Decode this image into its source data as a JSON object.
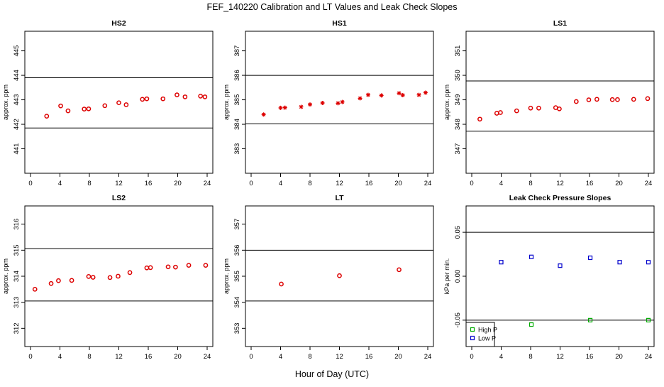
{
  "figure": {
    "title": "FEF_140220  Calibration and LT Values and Leak Check Slopes",
    "xlabel": "Hour of Day (UTC)"
  },
  "colors": {
    "sample": "#dd0000",
    "high_p": "#00aa00",
    "low_p": "#0000cc",
    "axis": "#000000"
  },
  "chart_data": [
    {
      "type": "scatter",
      "title": "HS2",
      "ylabel": "approx. ppm",
      "xlim": [
        0,
        24
      ],
      "ylim": [
        440,
        445.8
      ],
      "xticks": [
        0,
        4,
        8,
        12,
        16,
        20,
        24
      ],
      "yticks": [
        441,
        442,
        443,
        444,
        445
      ],
      "hlines": [
        441.85,
        443.9
      ],
      "marker": "circle",
      "series": [
        {
          "color": "#dd0000",
          "x": [
            2.2,
            4.1,
            5.1,
            7.3,
            7.9,
            10.1,
            12.0,
            13.0,
            15.2,
            15.8,
            18.0,
            19.9,
            21.0,
            23.1,
            23.7
          ],
          "y": [
            442.33,
            442.75,
            442.55,
            442.62,
            442.63,
            442.76,
            442.88,
            442.8,
            443.02,
            443.04,
            443.04,
            443.2,
            443.12,
            443.15,
            443.12
          ]
        }
      ]
    },
    {
      "type": "scatter",
      "title": "HS1",
      "ylabel": "approx. ppm",
      "xlim": [
        0,
        24
      ],
      "ylim": [
        382,
        387.8
      ],
      "xticks": [
        0,
        4,
        8,
        12,
        16,
        20,
        24
      ],
      "yticks": [
        383,
        384,
        385,
        386,
        387
      ],
      "hlines": [
        384.02,
        386.0
      ],
      "marker": "star",
      "series": [
        {
          "color": "#dd0000",
          "x": [
            1.7,
            4.0,
            4.6,
            6.8,
            8.0,
            9.7,
            11.8,
            12.4,
            14.8,
            15.9,
            17.7,
            20.1,
            20.6,
            22.8,
            23.7
          ],
          "y": [
            384.4,
            384.67,
            384.68,
            384.71,
            384.81,
            384.87,
            384.86,
            384.91,
            385.06,
            385.2,
            385.18,
            385.27,
            385.19,
            385.2,
            385.29
          ]
        }
      ]
    },
    {
      "type": "scatter",
      "title": "LS1",
      "ylabel": "approx. ppm",
      "xlim": [
        0,
        24
      ],
      "ylim": [
        346,
        351.8
      ],
      "xticks": [
        0,
        4,
        8,
        12,
        16,
        20,
        24
      ],
      "yticks": [
        347,
        348,
        349,
        350,
        351
      ],
      "hlines": [
        347.72,
        349.77
      ],
      "marker": "circle",
      "series": [
        {
          "color": "#dd0000",
          "x": [
            1.1,
            3.4,
            3.9,
            6.1,
            8.0,
            9.1,
            11.4,
            11.9,
            14.2,
            15.9,
            17.0,
            19.1,
            19.8,
            22.0,
            23.9
          ],
          "y": [
            348.21,
            348.45,
            348.48,
            348.55,
            348.66,
            348.66,
            348.68,
            348.63,
            348.93,
            349.0,
            349.02,
            349.01,
            349.01,
            349.02,
            349.05
          ]
        }
      ]
    },
    {
      "type": "scatter",
      "title": "LS2",
      "ylabel": "approx. ppm",
      "xlim": [
        0,
        24
      ],
      "ylim": [
        311.3,
        316.7
      ],
      "xticks": [
        0,
        4,
        8,
        12,
        16,
        20,
        24
      ],
      "yticks": [
        312,
        313,
        314,
        315,
        316
      ],
      "hlines": [
        313.05,
        315.06
      ],
      "marker": "circle",
      "series": [
        {
          "color": "#dd0000",
          "x": [
            0.6,
            2.8,
            3.8,
            5.6,
            7.9,
            8.5,
            10.8,
            11.9,
            13.5,
            15.8,
            16.3,
            18.7,
            19.7,
            21.5,
            23.8
          ],
          "y": [
            313.5,
            313.72,
            313.83,
            313.84,
            313.99,
            313.96,
            313.95,
            314.0,
            314.14,
            314.32,
            314.33,
            314.36,
            314.35,
            314.42,
            314.42
          ]
        }
      ]
    },
    {
      "type": "scatter",
      "title": "LT",
      "ylabel": "approx. ppm",
      "xlim": [
        0,
        24
      ],
      "ylim": [
        352.3,
        357.7
      ],
      "xticks": [
        0,
        4,
        8,
        12,
        16,
        20,
        24
      ],
      "yticks": [
        353,
        354,
        355,
        356,
        357
      ],
      "hlines": [
        354.05,
        356.0
      ],
      "marker": "circle",
      "series": [
        {
          "color": "#dd0000",
          "x": [
            4.1,
            12.0,
            20.1
          ],
          "y": [
            354.7,
            355.02,
            355.25
          ]
        }
      ]
    },
    {
      "type": "scatter",
      "title": "Leak Check Pressure Slopes",
      "ylabel": "kPa per min.",
      "xlim": [
        0,
        24
      ],
      "ylim": [
        -0.08,
        0.08
      ],
      "xticks": [
        0,
        4,
        8,
        12,
        16,
        20,
        24
      ],
      "yticks": [
        -0.05,
        0.0,
        0.05
      ],
      "ytick_labels": [
        "-0.05",
        "0.00",
        "0.05"
      ],
      "hlines": [
        -0.05,
        0.05
      ],
      "marker": "square",
      "legend": {
        "placement": "bottom-left",
        "entries": [
          "High P",
          "Low P"
        ]
      },
      "series": [
        {
          "name": "High P",
          "color": "#00aa00",
          "x": [
            8.1,
            16.1,
            24.0
          ],
          "y": [
            -0.055,
            -0.05,
            -0.05
          ]
        },
        {
          "name": "Low P",
          "color": "#0000cc",
          "x": [
            4.0,
            8.1,
            12.0,
            16.1,
            20.1,
            24.0
          ],
          "y": [
            0.016,
            0.022,
            0.012,
            0.021,
            0.016,
            0.016
          ]
        }
      ]
    }
  ]
}
